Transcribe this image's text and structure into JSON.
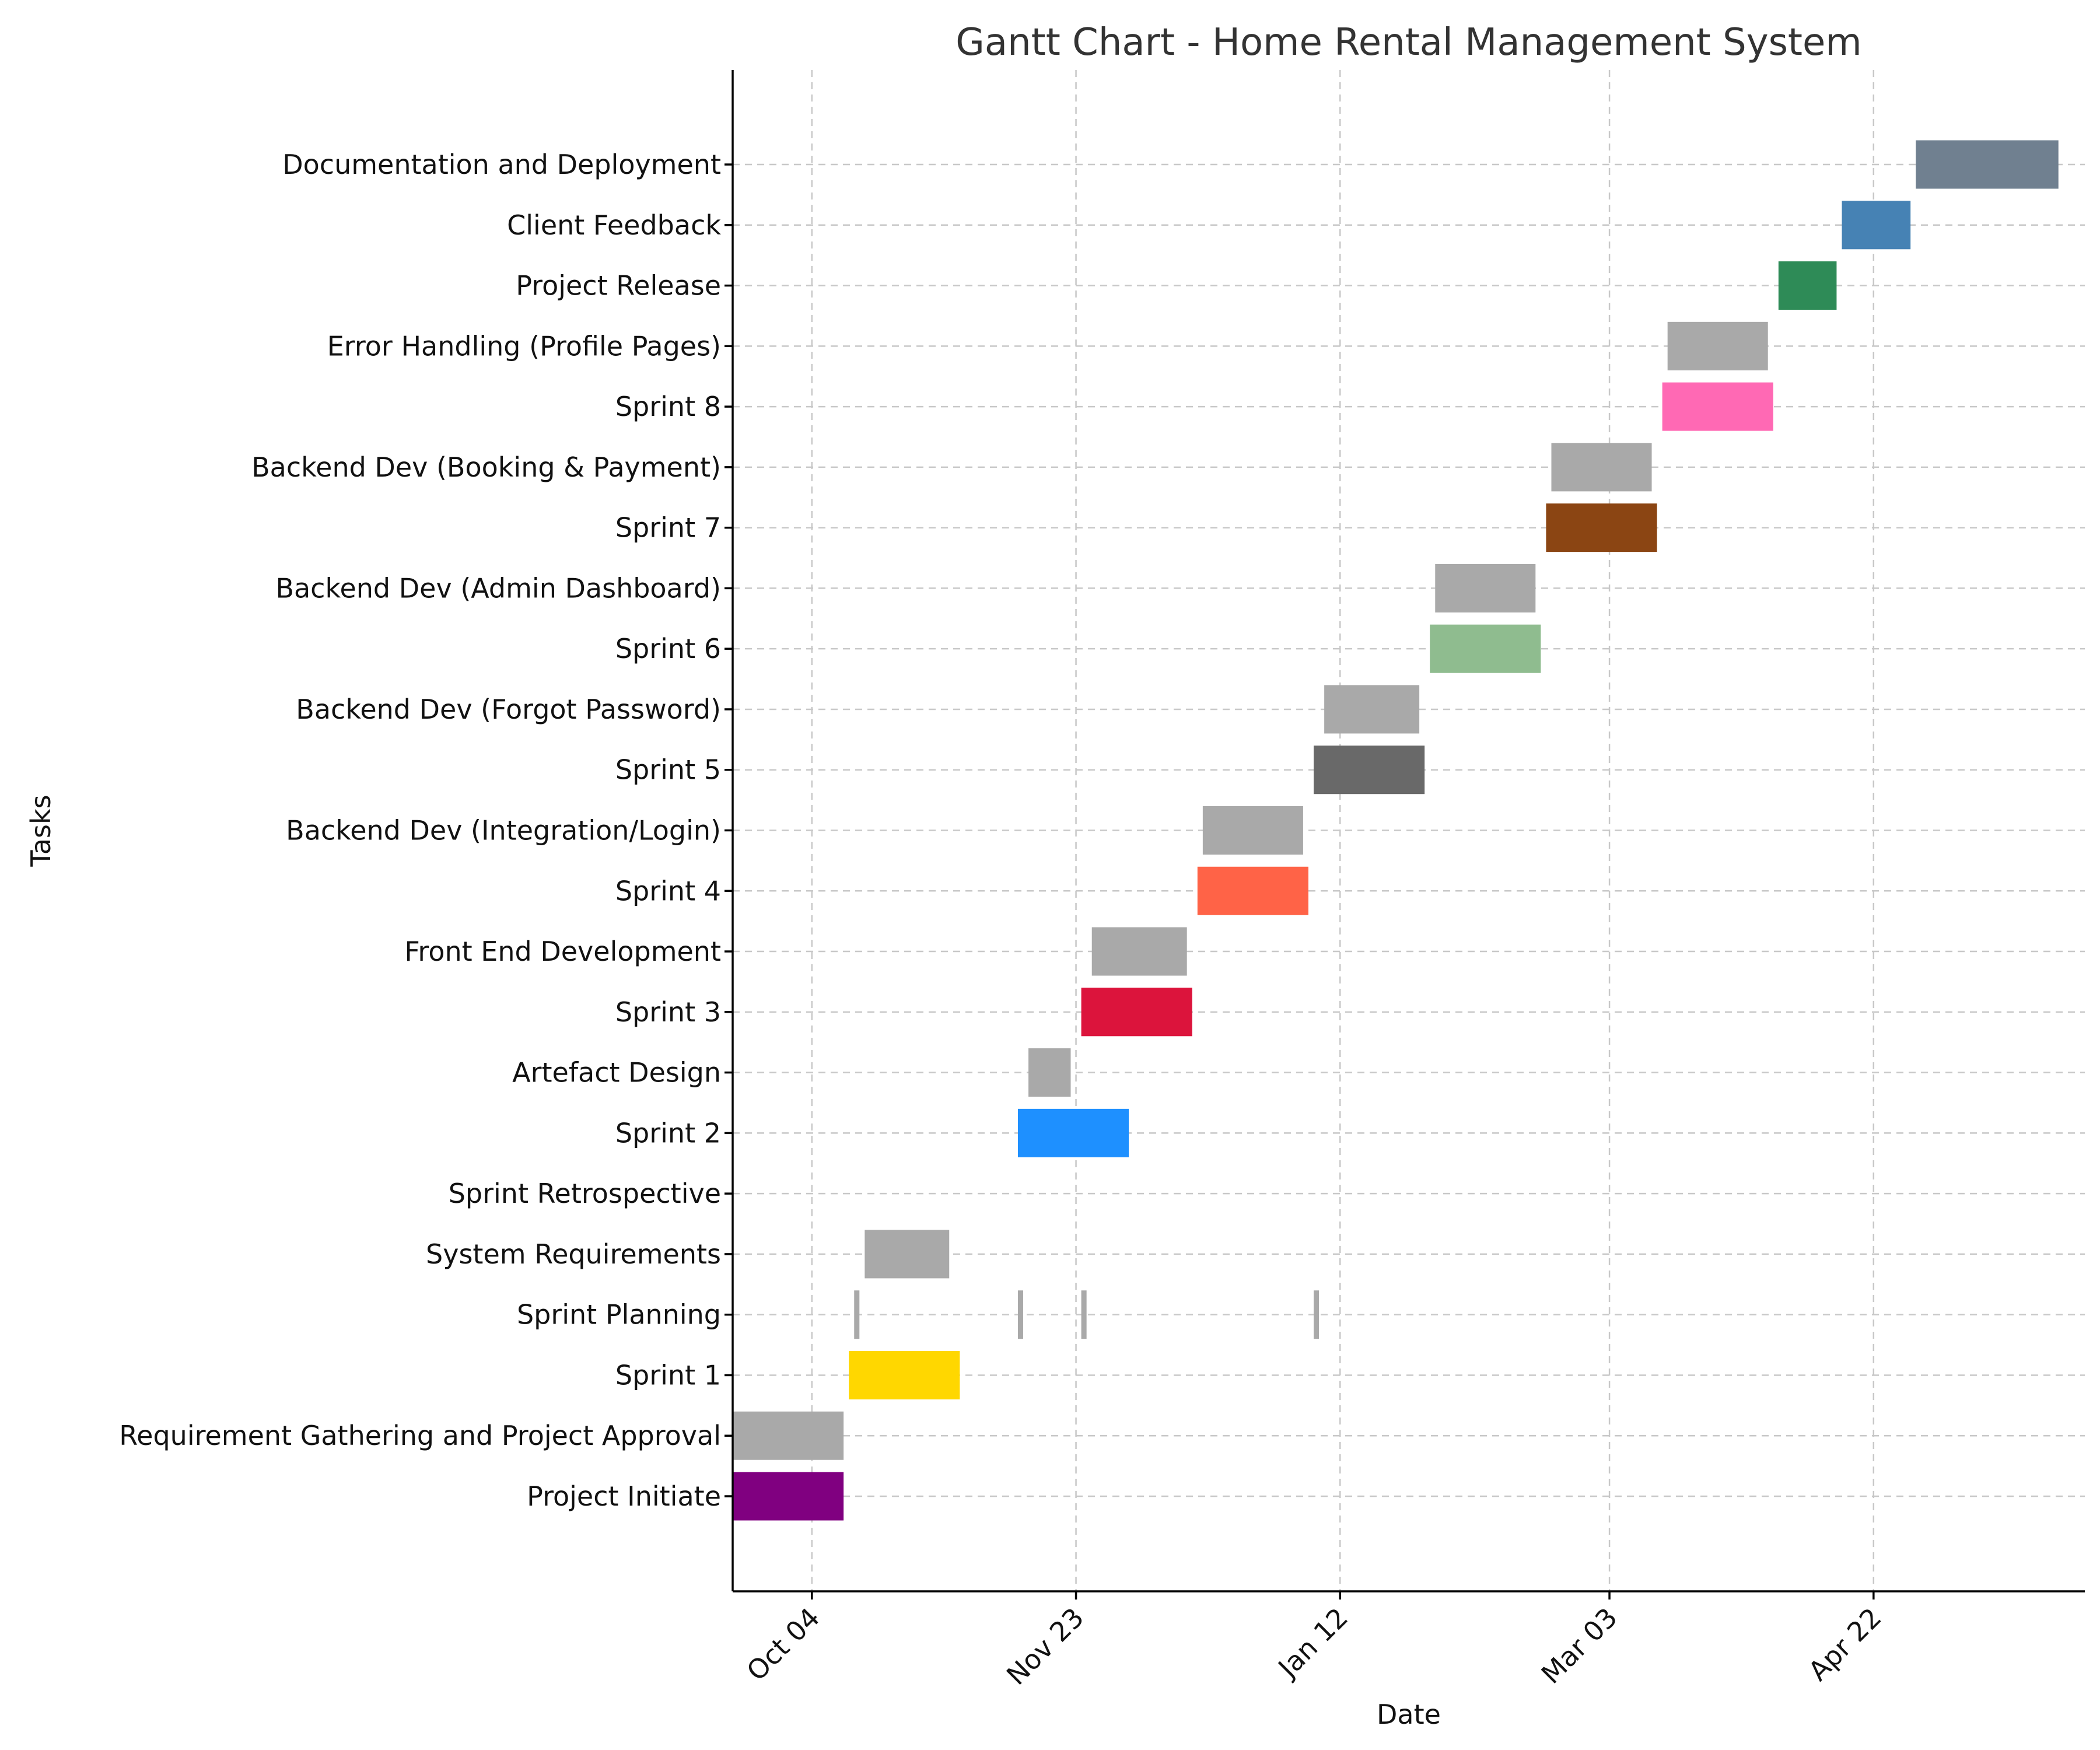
{
  "chart_data": {
    "type": "gantt",
    "title": "Gantt Chart - Home Rental Management System",
    "xlabel": "Date",
    "ylabel": "Tasks",
    "xlim": [
      "2023-09-19",
      "2024-06-01"
    ],
    "x_ticks": [
      {
        "date": "2023-10-04",
        "label": "Oct 04"
      },
      {
        "date": "2023-11-23",
        "label": "Nov 23"
      },
      {
        "date": "2024-01-12",
        "label": "Jan 12"
      },
      {
        "date": "2024-03-03",
        "label": "Mar 03"
      },
      {
        "date": "2024-04-22",
        "label": "Apr 22"
      }
    ],
    "grid": true,
    "tasks": [
      {
        "name": "Project Initiate",
        "bars": [
          {
            "start": "2023-09-19",
            "end": "2023-10-10"
          }
        ],
        "color": "#800080"
      },
      {
        "name": "Requirement Gathering and Project Approval",
        "bars": [
          {
            "start": "2023-09-19",
            "end": "2023-10-10"
          }
        ],
        "color": "#a9a9a9"
      },
      {
        "name": "Sprint 1",
        "bars": [
          {
            "start": "2023-10-11",
            "end": "2023-11-01"
          }
        ],
        "color": "#ffd700"
      },
      {
        "name": "Sprint Planning",
        "bars": [
          {
            "start": "2023-10-12",
            "end": "2023-10-13"
          },
          {
            "start": "2023-11-12",
            "end": "2023-11-13"
          },
          {
            "start": "2023-11-24",
            "end": "2023-11-25"
          },
          {
            "start": "2024-01-07",
            "end": "2024-01-08"
          }
        ],
        "color": "#a9a9a9"
      },
      {
        "name": "System Requirements",
        "bars": [
          {
            "start": "2023-10-14",
            "end": "2023-10-30"
          }
        ],
        "color": "#a9a9a9"
      },
      {
        "name": "Sprint Retrospective",
        "bars": [],
        "color": "#a9a9a9"
      },
      {
        "name": "Sprint 2",
        "bars": [
          {
            "start": "2023-11-12",
            "end": "2023-12-03"
          }
        ],
        "color": "#1e90ff"
      },
      {
        "name": "Artefact Design",
        "bars": [
          {
            "start": "2023-11-14",
            "end": "2023-11-22"
          }
        ],
        "color": "#a9a9a9"
      },
      {
        "name": "Sprint 3",
        "bars": [
          {
            "start": "2023-11-24",
            "end": "2023-12-15"
          }
        ],
        "color": "#dc143c"
      },
      {
        "name": "Front End Development",
        "bars": [
          {
            "start": "2023-11-26",
            "end": "2023-12-14"
          }
        ],
        "color": "#a9a9a9"
      },
      {
        "name": "Sprint 4",
        "bars": [
          {
            "start": "2023-12-16",
            "end": "2024-01-06"
          }
        ],
        "color": "#ff6347"
      },
      {
        "name": "Backend Dev (Integration/Login)",
        "bars": [
          {
            "start": "2023-12-17",
            "end": "2024-01-05"
          }
        ],
        "color": "#a9a9a9"
      },
      {
        "name": "Sprint 5",
        "bars": [
          {
            "start": "2024-01-07",
            "end": "2024-01-28"
          }
        ],
        "color": "#696969"
      },
      {
        "name": "Backend Dev (Forgot Password)",
        "bars": [
          {
            "start": "2024-01-09",
            "end": "2024-01-27"
          }
        ],
        "color": "#a9a9a9"
      },
      {
        "name": "Sprint 6",
        "bars": [
          {
            "start": "2024-01-29",
            "end": "2024-02-19"
          }
        ],
        "color": "#8fbc8f"
      },
      {
        "name": "Backend Dev (Admin Dashboard)",
        "bars": [
          {
            "start": "2024-01-30",
            "end": "2024-02-18"
          }
        ],
        "color": "#a9a9a9"
      },
      {
        "name": "Sprint 7",
        "bars": [
          {
            "start": "2024-02-20",
            "end": "2024-03-12"
          }
        ],
        "color": "#8b4513"
      },
      {
        "name": "Backend Dev (Booking & Payment)",
        "bars": [
          {
            "start": "2024-02-21",
            "end": "2024-03-11"
          }
        ],
        "color": "#a9a9a9"
      },
      {
        "name": "Sprint 8",
        "bars": [
          {
            "start": "2024-03-13",
            "end": "2024-04-03"
          }
        ],
        "color": "#ff69b4"
      },
      {
        "name": "Error Handling (Profile Pages)",
        "bars": [
          {
            "start": "2024-03-14",
            "end": "2024-04-02"
          }
        ],
        "color": "#a9a9a9"
      },
      {
        "name": "Project Release",
        "bars": [
          {
            "start": "2024-04-04",
            "end": "2024-04-15"
          }
        ],
        "color": "#2e8b57"
      },
      {
        "name": "Client Feedback",
        "bars": [
          {
            "start": "2024-04-16",
            "end": "2024-04-29"
          }
        ],
        "color": "#4682b4"
      },
      {
        "name": "Documentation and Deployment",
        "bars": [
          {
            "start": "2024-04-30",
            "end": "2024-05-27"
          }
        ],
        "color": "#708090"
      }
    ]
  }
}
